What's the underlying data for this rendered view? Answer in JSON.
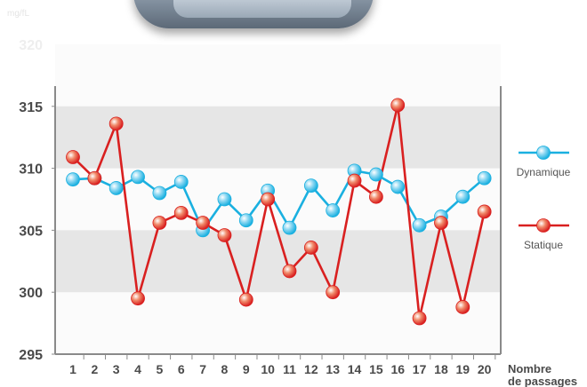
{
  "unit_label": "mg/fL",
  "chart_data": {
    "type": "line",
    "x": [
      1,
      2,
      3,
      4,
      5,
      6,
      7,
      8,
      9,
      10,
      11,
      12,
      13,
      14,
      15,
      16,
      17,
      18,
      19,
      20
    ],
    "series": [
      {
        "name": "Dynamique",
        "color": "#1ab0e0",
        "marker_color": "#8fd8f2",
        "values": [
          309.1,
          309.2,
          308.4,
          309.3,
          308.0,
          308.9,
          305.0,
          307.5,
          305.8,
          308.2,
          305.2,
          308.6,
          306.6,
          309.8,
          309.5,
          308.5,
          305.4,
          306.1,
          307.7,
          309.2
        ]
      },
      {
        "name": "Statique",
        "color": "#d92020",
        "marker_color": "#f08a6a",
        "values": [
          310.9,
          309.2,
          313.6,
          299.5,
          305.6,
          306.4,
          305.6,
          304.6,
          299.4,
          307.5,
          301.7,
          303.6,
          300.0,
          309.0,
          307.7,
          315.1,
          297.9,
          305.6,
          298.8,
          306.5
        ]
      }
    ],
    "y_ticks": [
      295,
      300,
      305,
      310,
      315
    ],
    "y_tick_faint": "320",
    "ylim": [
      295,
      320
    ],
    "xlabel_line1": "Nombre",
    "xlabel_line2": "de passages",
    "grid_bands": true,
    "legend_position": "right"
  }
}
